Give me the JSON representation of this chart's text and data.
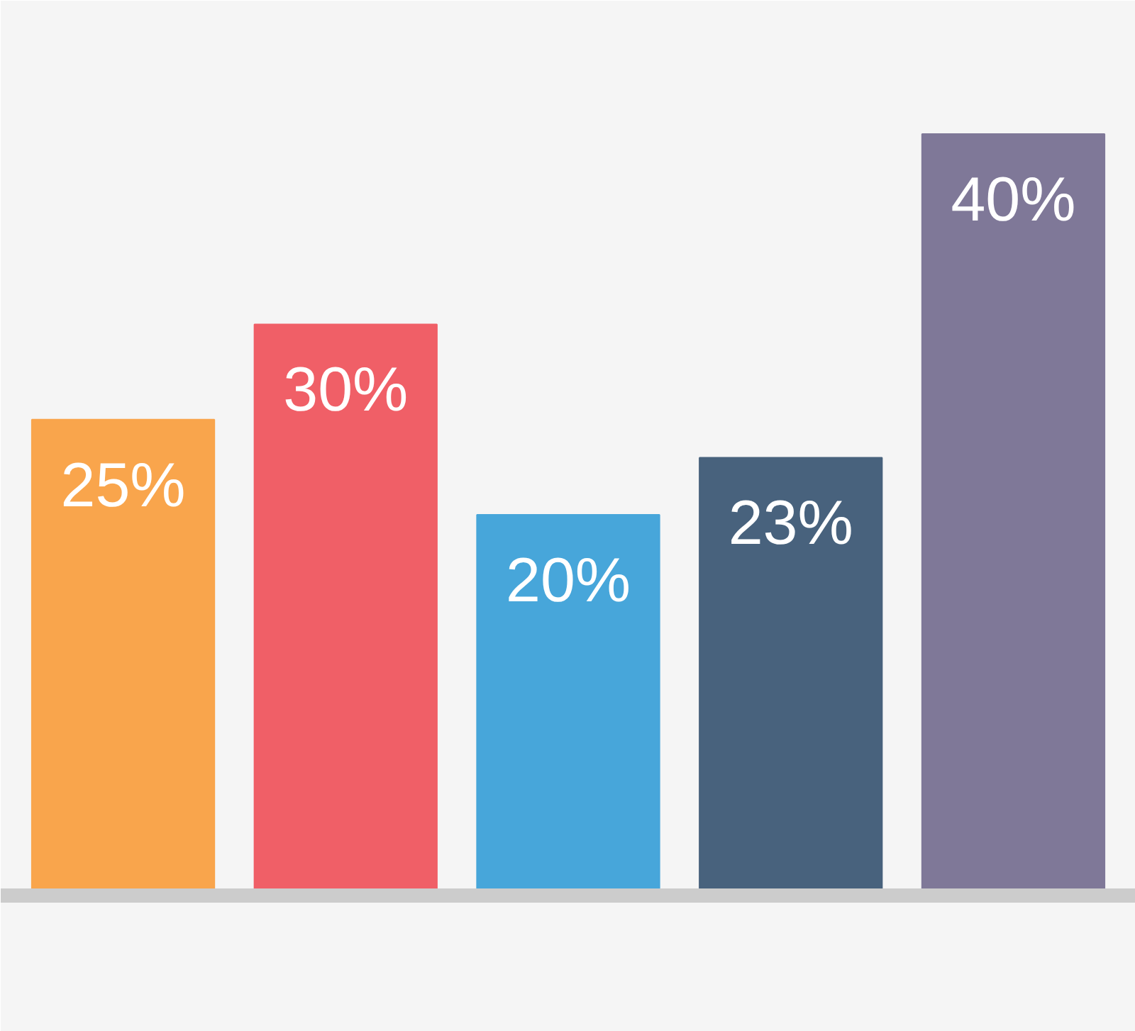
{
  "chart_data": {
    "type": "bar",
    "categories": [
      null,
      null,
      null,
      null,
      null
    ],
    "values": [
      25,
      30,
      20,
      23,
      40
    ],
    "colors": [
      "#f9a54c",
      "#f05f67",
      "#47a6da",
      "#48627d",
      "#7f7898"
    ],
    "value_labels": [
      "25%",
      "30%",
      "20%",
      "23%",
      "40%"
    ],
    "ylim": [
      0,
      47
    ],
    "tick_labels": false
  }
}
